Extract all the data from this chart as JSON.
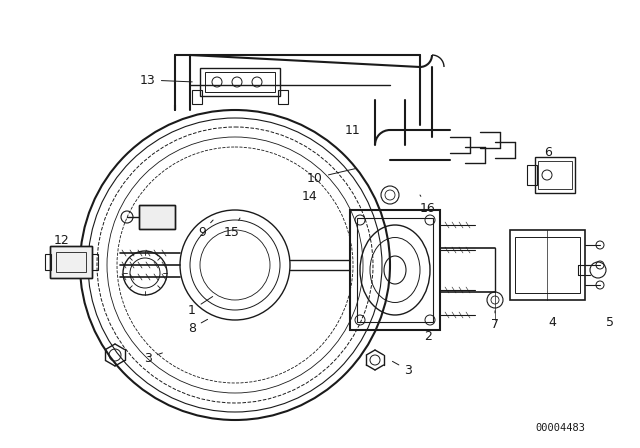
{
  "bg_color": "#ffffff",
  "line_color": "#1a1a1a",
  "part_number": "00004483",
  "fig_width": 6.4,
  "fig_height": 4.48,
  "dpi": 100
}
